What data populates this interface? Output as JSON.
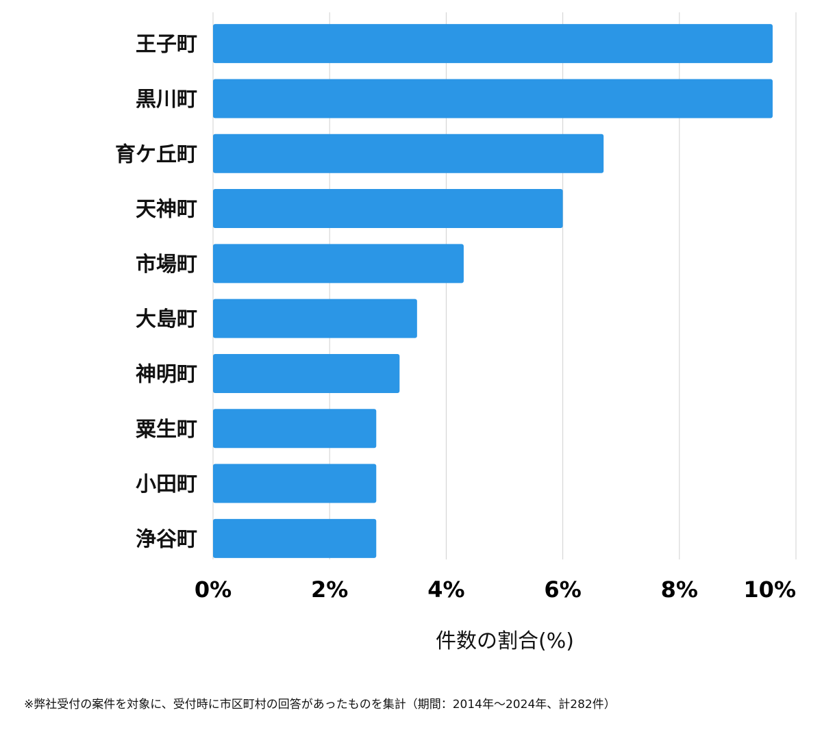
{
  "chart_data": {
    "type": "bar",
    "orientation": "horizontal",
    "categories": [
      "王子町",
      "黒川町",
      "育ケ丘町",
      "天神町",
      "市場町",
      "大島町",
      "神明町",
      "粟生町",
      "小田町",
      "浄谷町"
    ],
    "values": [
      9.6,
      9.6,
      6.7,
      6.0,
      4.3,
      3.5,
      3.2,
      2.8,
      2.8,
      2.8
    ],
    "xlim": [
      0,
      10
    ],
    "xticks": [
      0,
      2,
      4,
      6,
      8,
      10
    ],
    "xtick_labels": [
      "0%",
      "2%",
      "4%",
      "6%",
      "8%",
      "10%"
    ],
    "xlabel": "件数の割合(%)",
    "ylabel": "",
    "title": "",
    "grid": "vertical",
    "bar_color": "#2b96e6",
    "grid_color": "#d0d0d0"
  },
  "footnote": "※弊社受付の案件を対象に、受付時に市区町村の回答があったものを集計（期間：2014年〜2024年、計282件）"
}
